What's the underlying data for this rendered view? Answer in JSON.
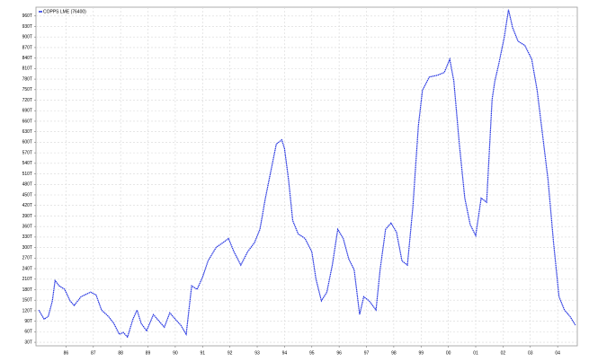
{
  "chart_data": {
    "type": "line",
    "series": [
      {
        "name": "COPPS LME (76400)",
        "color": "#1f2fe0",
        "values": [
          122,
          96,
          104,
          148,
          206,
          191,
          181,
          148,
          135,
          160,
          173,
          165,
          122,
          104,
          84,
          53,
          58,
          45,
          96,
          122,
          84,
          63,
          109,
          91,
          73,
          114,
          96,
          79,
          53,
          191,
          181,
          216,
          262,
          301,
          314,
          326,
          288,
          250,
          288,
          314,
          352,
          441,
          518,
          595,
          607,
          582,
          492,
          377,
          339,
          326,
          288,
          211,
          148,
          173,
          250,
          352,
          326,
          268,
          237,
          109,
          160,
          148,
          122,
          237,
          352,
          370,
          344,
          262,
          250,
          416,
          646,
          748,
          786,
          791,
          799,
          837,
          774,
          595,
          441,
          365,
          334,
          441,
          429,
          722,
          774,
          825,
          901,
          978,
          927,
          888,
          876,
          837,
          748,
          620,
          492,
          314,
          160,
          122,
          104,
          79
        ]
      }
    ],
    "x": [
      1985.0,
      1985.2,
      1985.35,
      1985.5,
      1985.6,
      1985.75,
      1985.95,
      1986.15,
      1986.3,
      1986.55,
      1986.9,
      1987.1,
      1987.3,
      1987.55,
      1987.75,
      1987.95,
      1988.1,
      1988.25,
      1988.45,
      1988.6,
      1988.75,
      1988.95,
      1989.2,
      1989.4,
      1989.6,
      1989.8,
      1990.0,
      1990.2,
      1990.4,
      1990.6,
      1990.8,
      1991.0,
      1991.2,
      1991.5,
      1991.75,
      1991.95,
      1992.15,
      1992.4,
      1992.65,
      1992.9,
      1993.1,
      1993.3,
      1993.5,
      1993.7,
      1993.9,
      1994.0,
      1994.15,
      1994.3,
      1994.5,
      1994.75,
      1995.0,
      1995.15,
      1995.35,
      1995.55,
      1995.75,
      1995.95,
      1996.15,
      1996.35,
      1996.55,
      1996.75,
      1996.9,
      1997.1,
      1997.35,
      1997.5,
      1997.7,
      1997.9,
      1998.1,
      1998.3,
      1998.5,
      1998.7,
      1998.9,
      1999.05,
      1999.3,
      1999.6,
      1999.85,
      2000.05,
      2000.2,
      2000.4,
      2000.6,
      2000.8,
      2001.0,
      2001.2,
      2001.4,
      2001.6,
      2001.7,
      2001.85,
      2002.05,
      2002.2,
      2002.35,
      2002.55,
      2002.8,
      2003.05,
      2003.25,
      2003.45,
      2003.65,
      2003.85,
      2004.05,
      2004.25,
      2004.45,
      2004.65
    ],
    "xlim": [
      1984.9,
      2004.72
    ],
    "xticks": [
      {
        "value": 1986,
        "label": "86"
      },
      {
        "value": 1987,
        "label": "87"
      },
      {
        "value": 1988,
        "label": "88"
      },
      {
        "value": 1989,
        "label": "89"
      },
      {
        "value": 1990,
        "label": "90"
      },
      {
        "value": 1991,
        "label": "91"
      },
      {
        "value": 1992,
        "label": "92"
      },
      {
        "value": 1993,
        "label": "93"
      },
      {
        "value": 1994,
        "label": "94"
      },
      {
        "value": 1995,
        "label": "95"
      },
      {
        "value": 1996,
        "label": "96"
      },
      {
        "value": 1997,
        "label": "97"
      },
      {
        "value": 1998,
        "label": "98"
      },
      {
        "value": 1999,
        "label": "99"
      },
      {
        "value": 2000,
        "label": "00"
      },
      {
        "value": 2001,
        "label": "01"
      },
      {
        "value": 2002,
        "label": "02"
      },
      {
        "value": 2003,
        "label": "03"
      },
      {
        "value": 2004,
        "label": "04"
      }
    ],
    "ylim": [
      20,
      985
    ],
    "yticks": [
      {
        "value": 30,
        "label": "30T"
      },
      {
        "value": 60,
        "label": "60T"
      },
      {
        "value": 90,
        "label": "90T"
      },
      {
        "value": 120,
        "label": "120T"
      },
      {
        "value": 150,
        "label": "150T"
      },
      {
        "value": 180,
        "label": "180T"
      },
      {
        "value": 210,
        "label": "210T"
      },
      {
        "value": 240,
        "label": "240T"
      },
      {
        "value": 270,
        "label": "270T"
      },
      {
        "value": 300,
        "label": "300T"
      },
      {
        "value": 330,
        "label": "330T"
      },
      {
        "value": 360,
        "label": "360T"
      },
      {
        "value": 390,
        "label": "390T"
      },
      {
        "value": 420,
        "label": "420T"
      },
      {
        "value": 450,
        "label": "450T"
      },
      {
        "value": 480,
        "label": "480T"
      },
      {
        "value": 510,
        "label": "510T"
      },
      {
        "value": 540,
        "label": "540T"
      },
      {
        "value": 570,
        "label": "570T"
      },
      {
        "value": 600,
        "label": "600T"
      },
      {
        "value": 630,
        "label": "630T"
      },
      {
        "value": 660,
        "label": "660T"
      },
      {
        "value": 690,
        "label": "690T"
      },
      {
        "value": 720,
        "label": "720T"
      },
      {
        "value": 750,
        "label": "750T"
      },
      {
        "value": 780,
        "label": "780T"
      },
      {
        "value": 810,
        "label": "810T"
      },
      {
        "value": 840,
        "label": "840T"
      },
      {
        "value": 870,
        "label": "870T"
      },
      {
        "value": 900,
        "label": "900T"
      },
      {
        "value": 930,
        "label": "930T"
      },
      {
        "value": 960,
        "label": "960T"
      }
    ],
    "grid": true,
    "legend": "top-left"
  }
}
